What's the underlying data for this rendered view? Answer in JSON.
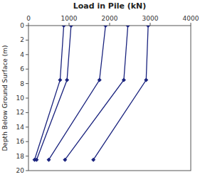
{
  "chart_data": {
    "type": "line",
    "title": "Load in Pile (kN)",
    "ylabel": "Depth Below Ground Surface (m)",
    "xlim": [
      0,
      4000
    ],
    "ylim": [
      20,
      0
    ],
    "xticks": [
      0,
      1000,
      2000,
      3000,
      4000
    ],
    "yticks": [
      0,
      2,
      4,
      6,
      8,
      10,
      12,
      14,
      16,
      18,
      20
    ],
    "color": "#1a237e",
    "marker": "diamond",
    "grid": false,
    "series": [
      {
        "x": [
          870,
          780,
          150
        ],
        "values": [
          0,
          7.5,
          18.5
        ]
      },
      {
        "x": [
          1050,
          950,
          200
        ],
        "values": [
          0,
          7.5,
          18.5
        ]
      },
      {
        "x": [
          1900,
          1750,
          500
        ],
        "values": [
          0,
          7.5,
          18.5
        ]
      },
      {
        "x": [
          2450,
          2350,
          900
        ],
        "values": [
          0,
          7.5,
          18.5
        ]
      },
      {
        "x": [
          2950,
          2900,
          1600
        ],
        "values": [
          0,
          7.5,
          18.5
        ]
      }
    ]
  }
}
